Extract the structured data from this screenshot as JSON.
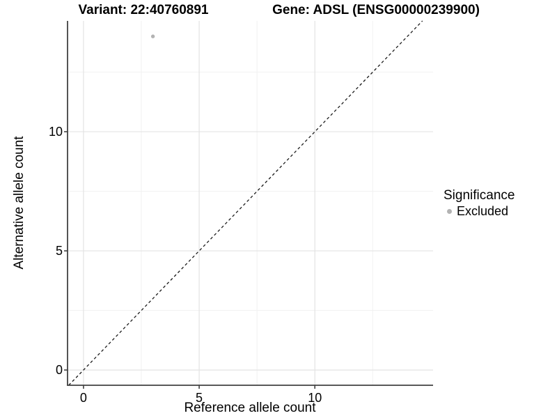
{
  "chart_data": {
    "type": "scatter",
    "title_left": "Variant: 22:40760891",
    "title_right": "Gene: ADSL (ENSG00000239900)",
    "xlabel": "Reference allele count",
    "ylabel": "Alternative allele count",
    "xlim": [
      -0.69,
      15.11
    ],
    "ylim": [
      -0.64,
      14.65
    ],
    "x_ticks": [
      0,
      5,
      10
    ],
    "y_ticks": [
      0,
      5,
      10
    ],
    "x_minor_gridlines": [
      2.5,
      7.5,
      12.5
    ],
    "y_minor_gridlines": [
      2.5,
      7.5,
      12.5
    ],
    "grid": true,
    "legend_position": "right",
    "legend": {
      "title": "Significance",
      "items": [
        {
          "label": "Excluded",
          "color": "#b3b3b3"
        }
      ]
    },
    "points": [
      {
        "x": 3,
        "y": 14,
        "series": "Excluded",
        "color": "#b3b3b3"
      }
    ],
    "reference_line": {
      "kind": "identity",
      "equation": "y = x",
      "style": "dashed",
      "color": "#1a1a1a"
    },
    "colors": {
      "excluded_point": "#b3b3b3",
      "axis_line": "#404040",
      "major_grid": "#e3e3e3",
      "minor_grid": "#f0f0f0",
      "text": "#000000"
    }
  }
}
